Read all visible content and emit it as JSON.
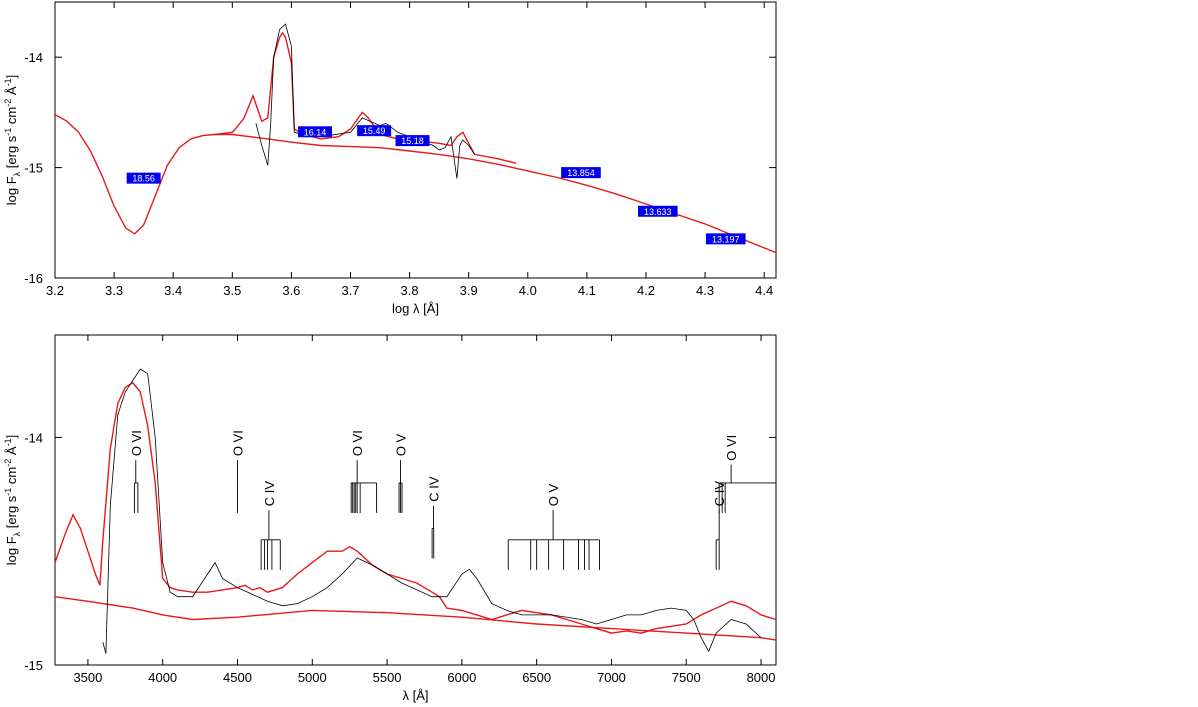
{
  "chart_data": [
    {
      "type": "line",
      "xlabel": "log λ [Å]",
      "ylabel": "log F",
      "ylabel_sub": "λ",
      "ylabel_units": "[erg s",
      "ylabel_exp1": "-1",
      "ylabel_mid": "cm",
      "ylabel_exp2": "-2",
      "ylabel_end": "Å",
      "ylabel_exp3": "-1",
      "ylabel_close": "]",
      "xlim": [
        3.2,
        4.42
      ],
      "ylim": [
        -16,
        -13.5
      ],
      "xticks": [
        "3.2",
        "3.3",
        "3.4",
        "3.5",
        "3.6",
        "3.7",
        "3.8",
        "3.9",
        "4.0",
        "4.1",
        "4.2",
        "4.3",
        "4.4"
      ],
      "xtick_values": [
        3.2,
        3.3,
        3.4,
        3.5,
        3.6,
        3.7,
        3.8,
        3.9,
        4.0,
        4.1,
        4.2,
        4.3,
        4.4
      ],
      "yticks": [
        "-14",
        "-15",
        "-16"
      ],
      "ytick_values": [
        -14,
        -15,
        -16
      ],
      "series": [
        {
          "color": "#e8191c",
          "x": [
            3.2,
            3.22,
            3.24,
            3.26,
            3.28,
            3.3,
            3.32,
            3.335,
            3.35,
            3.37,
            3.39,
            3.41,
            3.43,
            3.45,
            3.47,
            3.5,
            3.53,
            3.56,
            3.6,
            3.65,
            3.7,
            3.75,
            3.8,
            3.85,
            3.9,
            3.95,
            4.0,
            4.05,
            4.1,
            4.15,
            4.2,
            4.25,
            4.3,
            4.35,
            4.42
          ],
          "y": [
            -14.52,
            -14.58,
            -14.68,
            -14.85,
            -15.08,
            -15.35,
            -15.55,
            -15.6,
            -15.52,
            -15.25,
            -14.98,
            -14.82,
            -14.74,
            -14.71,
            -14.7,
            -14.7,
            -14.72,
            -14.74,
            -14.77,
            -14.8,
            -14.81,
            -14.82,
            -14.85,
            -14.88,
            -14.92,
            -14.97,
            -15.03,
            -15.09,
            -15.16,
            -15.24,
            -15.33,
            -15.42,
            -15.51,
            -15.62,
            -15.77
          ]
        },
        {
          "color": "#e8191c",
          "x": [
            3.47,
            3.5,
            3.51,
            3.52,
            3.535,
            3.55,
            3.56,
            3.57,
            3.58,
            3.585,
            3.59,
            3.6,
            3.605,
            3.62,
            3.65,
            3.68,
            3.7,
            3.72,
            3.73,
            3.75,
            3.78,
            3.8,
            3.85,
            3.87,
            3.88,
            3.89,
            3.9,
            3.91,
            3.95,
            3.98
          ],
          "y": [
            -14.7,
            -14.68,
            -14.62,
            -14.55,
            -14.35,
            -14.58,
            -14.55,
            -14.0,
            -13.82,
            -13.78,
            -13.82,
            -14.05,
            -14.65,
            -14.7,
            -14.74,
            -14.72,
            -14.65,
            -14.5,
            -14.55,
            -14.7,
            -14.74,
            -14.75,
            -14.78,
            -14.8,
            -14.72,
            -14.68,
            -14.78,
            -14.88,
            -14.92,
            -14.96
          ]
        },
        {
          "color": "#000000",
          "x": [
            3.54,
            3.55,
            3.56,
            3.565,
            3.57,
            3.58,
            3.59,
            3.6,
            3.605,
            3.62,
            3.65,
            3.7,
            3.72,
            3.75,
            3.76,
            3.78,
            3.8,
            3.82,
            3.84,
            3.85,
            3.86,
            3.87,
            3.88,
            3.885,
            3.89,
            3.9,
            3.91
          ],
          "y": [
            -14.6,
            -14.8,
            -14.98,
            -14.6,
            -14.0,
            -13.75,
            -13.7,
            -13.9,
            -14.68,
            -14.7,
            -14.72,
            -14.68,
            -14.55,
            -14.62,
            -14.6,
            -14.68,
            -14.72,
            -14.76,
            -14.8,
            -14.84,
            -14.82,
            -14.72,
            -15.1,
            -14.8,
            -14.75,
            -14.8,
            -14.88
          ]
        }
      ],
      "annotations": [
        {
          "text": "18.56",
          "x": 3.35,
          "y": -15.1
        },
        {
          "text": "16.14",
          "x": 3.64,
          "y": -14.68
        },
        {
          "text": "15.49",
          "x": 3.74,
          "y": -14.67
        },
        {
          "text": "15.18",
          "x": 3.805,
          "y": -14.76
        },
        {
          "text": "13.854",
          "x": 4.09,
          "y": -15.05
        },
        {
          "text": "13.633",
          "x": 4.22,
          "y": -15.4
        },
        {
          "text": "13.197",
          "x": 4.335,
          "y": -15.65
        }
      ]
    },
    {
      "type": "line",
      "xlabel": "λ [Å]",
      "ylabel": "log F",
      "ylabel_sub": "λ",
      "ylabel_units": "[erg s",
      "ylabel_exp1": "-1",
      "ylabel_mid": "cm",
      "ylabel_exp2": "-2",
      "ylabel_end": "Å",
      "ylabel_exp3": "-1",
      "ylabel_close": "]",
      "xlim": [
        3280,
        8100
      ],
      "ylim": [
        -15,
        -13.55
      ],
      "xticks": [
        "3500",
        "4000",
        "4500",
        "5000",
        "5500",
        "6000",
        "6500",
        "7000",
        "7500",
        "8000"
      ],
      "xtick_values": [
        3500,
        4000,
        4500,
        5000,
        5500,
        6000,
        6500,
        7000,
        7500,
        8000
      ],
      "yticks": [
        "-14",
        "-15"
      ],
      "ytick_values": [
        -14,
        -15
      ],
      "series": [
        {
          "color": "#e8191c",
          "x": [
            3280,
            3350,
            3400,
            3450,
            3500,
            3550,
            3580,
            3600,
            3650,
            3700,
            3750,
            3800,
            3850,
            3900,
            3950,
            4000,
            4050,
            4100,
            4200,
            4300,
            4400,
            4500,
            4550,
            4600,
            4650,
            4700,
            4800,
            4900,
            5000,
            5100,
            5200,
            5250,
            5300,
            5350,
            5400,
            5500,
            5600,
            5700,
            5800,
            5850,
            5900,
            6000,
            6100,
            6200,
            6300,
            6400,
            6500,
            6600,
            6700,
            6800,
            6900,
            7000,
            7100,
            7200,
            7300,
            7400,
            7500,
            7600,
            7700,
            7800,
            7900,
            8000,
            8100
          ],
          "y": [
            -14.55,
            -14.42,
            -14.34,
            -14.4,
            -14.5,
            -14.6,
            -14.65,
            -14.45,
            -14.05,
            -13.85,
            -13.78,
            -13.76,
            -13.8,
            -13.95,
            -14.2,
            -14.62,
            -14.66,
            -14.67,
            -14.68,
            -14.68,
            -14.67,
            -14.66,
            -14.65,
            -14.67,
            -14.66,
            -14.68,
            -14.66,
            -14.6,
            -14.55,
            -14.5,
            -14.5,
            -14.48,
            -14.5,
            -14.53,
            -14.56,
            -14.6,
            -14.62,
            -14.64,
            -14.68,
            -14.7,
            -14.75,
            -14.76,
            -14.78,
            -14.8,
            -14.78,
            -14.76,
            -14.77,
            -14.78,
            -14.8,
            -14.82,
            -14.84,
            -14.86,
            -14.85,
            -14.86,
            -14.84,
            -14.83,
            -14.82,
            -14.78,
            -14.75,
            -14.72,
            -14.74,
            -14.78,
            -14.8
          ]
        },
        {
          "color": "#e8191c",
          "x": [
            3280,
            3500,
            3800,
            4000,
            4200,
            4500,
            5000,
            5500,
            6000,
            6500,
            7000,
            7500,
            8000,
            8100
          ],
          "y": [
            -14.7,
            -14.72,
            -14.75,
            -14.78,
            -14.8,
            -14.79,
            -14.76,
            -14.77,
            -14.79,
            -14.82,
            -14.84,
            -14.86,
            -14.88,
            -14.89
          ]
        },
        {
          "color": "#000000",
          "x": [
            3600,
            3620,
            3650,
            3700,
            3750,
            3800,
            3850,
            3900,
            3950,
            4000,
            4050,
            4100,
            4200,
            4300,
            4350,
            4400,
            4500,
            4600,
            4700,
            4800,
            4900,
            5000,
            5100,
            5200,
            5300,
            5400,
            5500,
            5600,
            5700,
            5800,
            5900,
            6000,
            6050,
            6100,
            6200,
            6300,
            6400,
            6500,
            6600,
            6800,
            6900,
            7000,
            7100,
            7200,
            7300,
            7400,
            7500,
            7550,
            7600,
            7650,
            7700,
            7800,
            7900,
            8000
          ],
          "y": [
            -14.9,
            -14.95,
            -14.3,
            -13.9,
            -13.8,
            -13.75,
            -13.7,
            -13.72,
            -14.0,
            -14.55,
            -14.68,
            -14.7,
            -14.7,
            -14.6,
            -14.55,
            -14.62,
            -14.66,
            -14.69,
            -14.72,
            -14.74,
            -14.73,
            -14.7,
            -14.66,
            -14.6,
            -14.53,
            -14.56,
            -14.6,
            -14.64,
            -14.67,
            -14.7,
            -14.7,
            -14.6,
            -14.58,
            -14.62,
            -14.73,
            -14.76,
            -14.78,
            -14.78,
            -14.78,
            -14.8,
            -14.82,
            -14.8,
            -14.78,
            -14.78,
            -14.76,
            -14.75,
            -14.76,
            -14.8,
            -14.88,
            -14.94,
            -14.86,
            -14.8,
            -14.82,
            -14.88
          ]
        }
      ],
      "line_ids": [
        {
          "text": "O VI",
          "x": 3820,
          "stem_top": -14.1,
          "bar_y": -14.2,
          "ticks": [
            3811,
            3834
          ]
        },
        {
          "text": "O VI",
          "x": 4500,
          "stem_top": -14.1,
          "bar_y": -14.2,
          "ticks": [
            4500
          ]
        },
        {
          "text": "C IV",
          "x": 4710,
          "stem_top": -14.32,
          "bar_y": -14.45,
          "ticks": [
            4658,
            4680,
            4700,
            4730,
            4786
          ]
        },
        {
          "text": "O VI",
          "x": 5300,
          "stem_top": -14.1,
          "bar_y": -14.2,
          "ticks": [
            5260,
            5270,
            5280,
            5290,
            5300,
            5320,
            5430
          ]
        },
        {
          "text": "O V",
          "x": 5590,
          "stem_top": -14.1,
          "bar_y": -14.2,
          "ticks": [
            5580,
            5590,
            5600
          ]
        },
        {
          "text": "C IV",
          "x": 5810,
          "stem_top": -14.3,
          "bar_y": -14.4,
          "ticks": [
            5801,
            5812
          ]
        },
        {
          "text": "O V",
          "x": 6610,
          "stem_top": -14.32,
          "bar_y": -14.45,
          "ticks": [
            6310,
            6460,
            6500,
            6580,
            6680,
            6780,
            6820,
            6850,
            6920
          ]
        },
        {
          "text": "C IV",
          "x": 7720,
          "stem_top": -14.32,
          "bar_y": -14.45,
          "ticks": [
            7700,
            7720
          ]
        },
        {
          "text": "O VI",
          "x": 7800,
          "stem_top": -14.12,
          "bar_y": -14.2,
          "ticks": [
            7720,
            7740,
            7760,
            8100
          ]
        }
      ]
    }
  ]
}
